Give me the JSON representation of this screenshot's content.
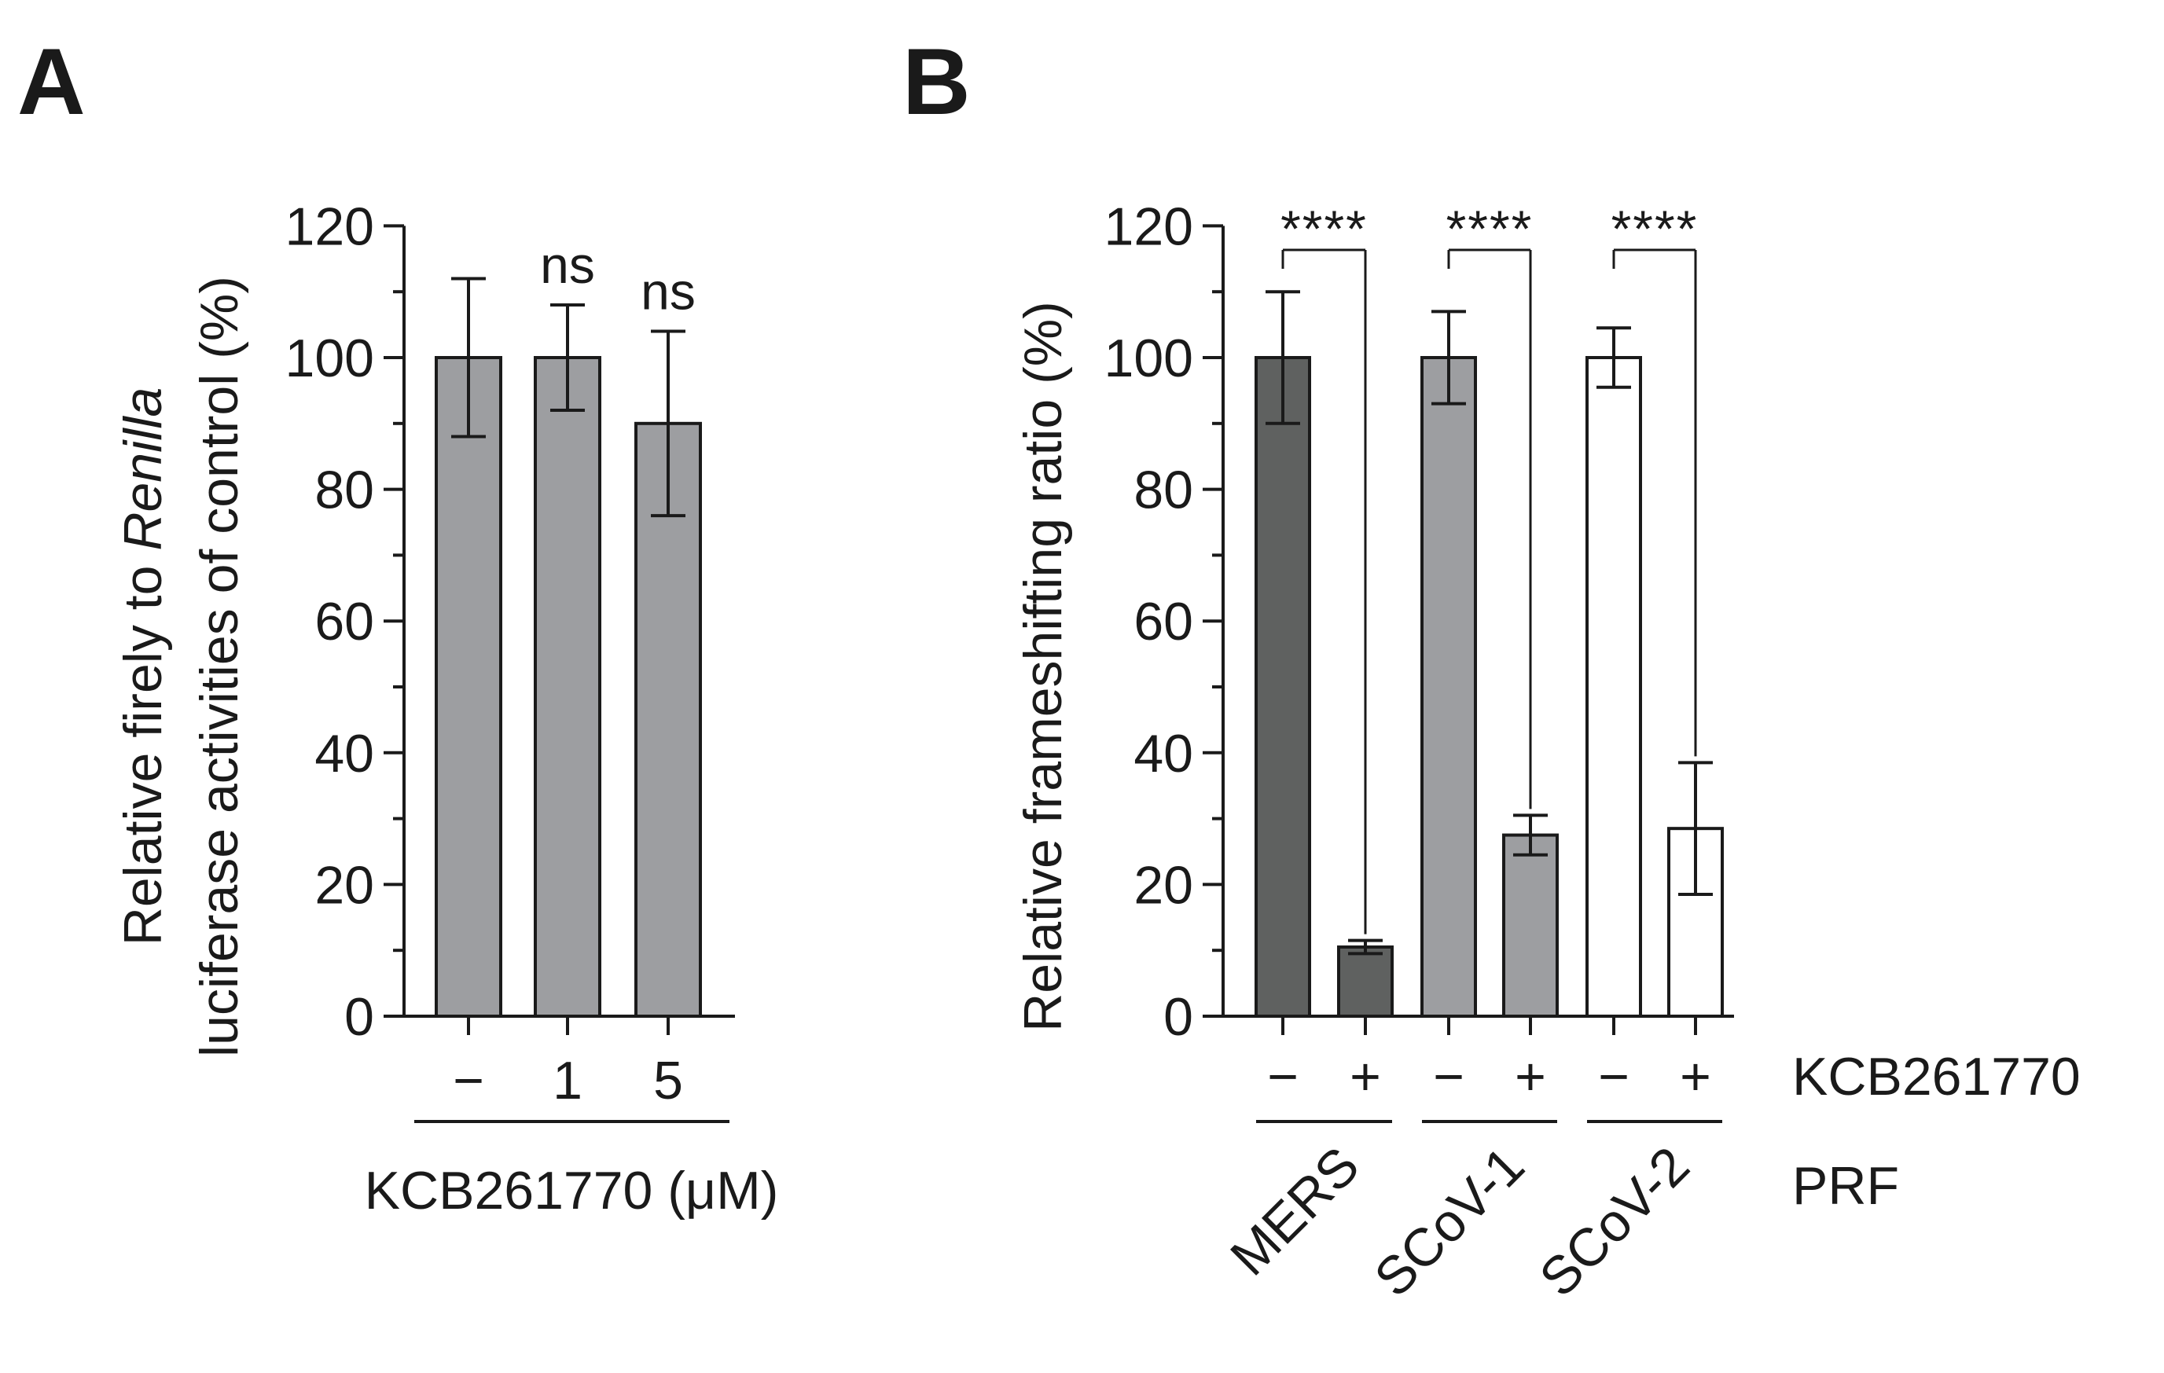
{
  "chart_data": [
    {
      "panel": "A",
      "type": "bar",
      "title": "",
      "ylabel_line1_prefix": "Relative firely to ",
      "ylabel_line1_italic": "Renilla",
      "ylabel_line2": "luciferase activities of control (%)",
      "xlabel": "KCB261770 (μM)",
      "categories": [
        "−",
        "1",
        "5"
      ],
      "values": [
        100,
        100,
        90
      ],
      "errors": [
        12,
        8,
        14
      ],
      "bar_colors": [
        "#9d9ea1",
        "#9d9ea1",
        "#9d9ea1"
      ],
      "significance": [
        "",
        "ns",
        "ns"
      ],
      "ylim": [
        0,
        120
      ],
      "yticks": [
        "0",
        "20",
        "40",
        "60",
        "80",
        "100",
        "120"
      ]
    },
    {
      "panel": "B",
      "type": "bar",
      "title": "",
      "ylabel": "Relative frameshifting ratio (%)",
      "row_labels": {
        "treatment": "KCB261770",
        "group": "PRF"
      },
      "treatment": [
        "−",
        "+",
        "−",
        "+",
        "−",
        "+"
      ],
      "values": [
        100,
        10.5,
        100,
        27.5,
        100,
        28.5
      ],
      "errors": [
        10,
        1,
        7,
        3,
        4.5,
        10
      ],
      "bar_colors": [
        "#5f6160",
        "#5f6160",
        "#9d9ea1",
        "#9d9ea1",
        "#ffffff",
        "#ffffff"
      ],
      "groups": [
        "MERS",
        "SCoV-1",
        "SCoV-2"
      ],
      "significance": [
        "****",
        "****",
        "****"
      ],
      "ylim": [
        0,
        120
      ],
      "yticks": [
        "0",
        "20",
        "40",
        "60",
        "80",
        "100",
        "120"
      ]
    }
  ]
}
